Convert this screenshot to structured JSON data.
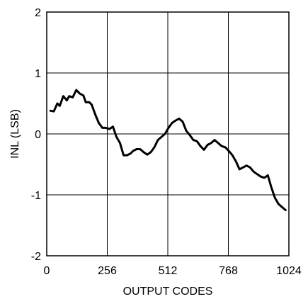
{
  "chart_data": {
    "type": "line",
    "xlabel": "OUTPUT CODES",
    "ylabel": "INL (LSB)",
    "xlim": [
      0,
      1024
    ],
    "ylim": [
      -2,
      2
    ],
    "xticks": [
      0,
      256,
      512,
      768,
      1024
    ],
    "yticks": [
      2,
      1,
      0,
      -1,
      -2
    ],
    "grid": true,
    "series": [
      {
        "x": [
          16,
          30,
          45,
          55,
          70,
          85,
          95,
          110,
          125,
          140,
          155,
          165,
          180,
          190,
          205,
          220,
          235,
          250,
          265,
          280,
          295,
          310,
          325,
          340,
          355,
          365,
          380,
          395,
          410,
          425,
          440,
          455,
          470,
          485,
          500,
          515,
          530,
          545,
          560,
          575,
          590,
          605,
          620,
          635,
          650,
          665,
          680,
          695,
          710,
          725,
          740,
          755,
          770,
          785,
          800,
          815,
          830,
          845,
          860,
          875,
          890,
          905,
          920,
          935,
          950,
          965,
          980,
          995,
          1010
        ],
        "values": [
          0.38,
          0.37,
          0.5,
          0.46,
          0.62,
          0.55,
          0.62,
          0.6,
          0.72,
          0.66,
          0.63,
          0.52,
          0.52,
          0.48,
          0.32,
          0.18,
          0.1,
          0.1,
          0.08,
          0.12,
          -0.05,
          -0.15,
          -0.35,
          -0.35,
          -0.32,
          -0.28,
          -0.25,
          -0.25,
          -0.3,
          -0.34,
          -0.3,
          -0.22,
          -0.1,
          -0.05,
          0.0,
          0.1,
          0.18,
          0.22,
          0.25,
          0.2,
          0.05,
          -0.02,
          -0.1,
          -0.12,
          -0.2,
          -0.26,
          -0.18,
          -0.15,
          -0.1,
          -0.15,
          -0.2,
          -0.22,
          -0.28,
          -0.35,
          -0.45,
          -0.58,
          -0.55,
          -0.52,
          -0.55,
          -0.62,
          -0.66,
          -0.7,
          -0.72,
          -0.68,
          -0.88,
          -1.05,
          -1.15,
          -1.2,
          -1.25
        ]
      }
    ]
  }
}
